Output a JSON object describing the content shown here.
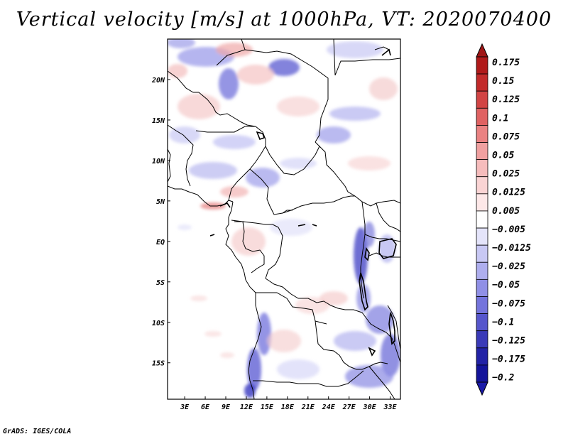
{
  "title": "Vertical velocity [m/s] at 1000hPa, VT: 2020070400",
  "footer": "GrADS: IGES/COLA",
  "map": {
    "lon_labels": [
      "3E",
      "6E",
      "9E",
      "12E",
      "15E",
      "18E",
      "21E",
      "24E",
      "27E",
      "30E",
      "33E"
    ],
    "lat_labels": [
      "20N",
      "15N",
      "10N",
      "5N",
      "EQ",
      "5S",
      "10S",
      "15S"
    ],
    "lon_values": [
      3,
      6,
      9,
      12,
      15,
      18,
      21,
      24,
      27,
      30,
      33
    ],
    "lat_values": [
      20,
      15,
      10,
      5,
      0,
      -5,
      -10,
      -15
    ],
    "lon_range": [
      0.5,
      34.5
    ],
    "lat_range": [
      -19.5,
      25
    ]
  },
  "colorbar": {
    "colors": [
      "#ffffff",
      "#f5dada",
      "#fbc8c8",
      "#f3a8a8",
      "#ec8c8c",
      "#e26a6a",
      "#d84848",
      "#c82828",
      "#b41818",
      "#a00c0c",
      "#ffffff",
      "#d8d8f8",
      "#c0c0f4",
      "#a8a8ee",
      "#8c8ce6",
      "#7070dc",
      "#5454d0",
      "#3a3ac0",
      "#2424b0",
      "#10109c"
    ],
    "top_color": "#a01616",
    "bottom_color": "#1a1aa8",
    "labels": [
      "0.175",
      "0.15",
      "0.125",
      "0.1",
      "0.075",
      "0.05",
      "0.025",
      "0.0125",
      "0.005",
      "−0.005",
      "−0.0125",
      "−0.025",
      "−0.05",
      "−0.075",
      "−0.1",
      "−0.125",
      "−0.175",
      "−0.2"
    ],
    "segment_colors": [
      "#b01a1a",
      "#c22a2a",
      "#d24444",
      "#e06262",
      "#ea8282",
      "#f0a0a0",
      "#f6bcbc",
      "#fad4d4",
      "#fde8e8",
      "#ffffff",
      "#e4e4fa",
      "#c8c8f4",
      "#aeaeee",
      "#9090e6",
      "#7474dc",
      "#5656cc",
      "#3a3ab8",
      "#2222a6",
      "#14149a"
    ]
  }
}
